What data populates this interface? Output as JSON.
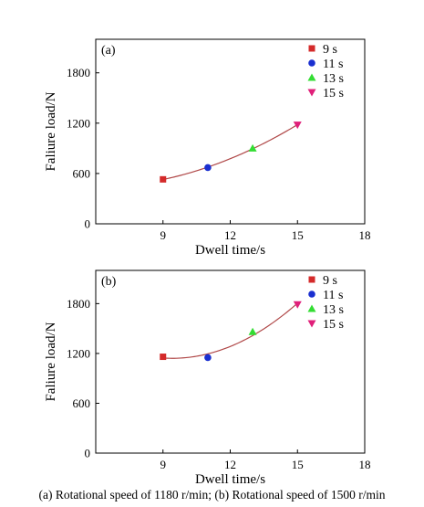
{
  "chart_data": [
    {
      "type": "scatter",
      "panel_label": "(a)",
      "xlabel": "Dwell time/s",
      "ylabel": "Faliure load/N",
      "xlim": [
        6,
        18
      ],
      "ylim": [
        0,
        2200
      ],
      "xticks": [
        9,
        12,
        15,
        18
      ],
      "yticks": [
        0,
        600,
        1200,
        1800
      ],
      "legend_position": "top-right",
      "series": [
        {
          "name": "9 s",
          "marker": "square",
          "color": "#d42a2a",
          "x": [
            9
          ],
          "y": [
            530
          ]
        },
        {
          "name": "11 s",
          "marker": "circle",
          "color": "#1a2fd0",
          "x": [
            11
          ],
          "y": [
            670
          ]
        },
        {
          "name": "13 s",
          "marker": "triangle-up",
          "color": "#33dd33",
          "x": [
            13
          ],
          "y": [
            900
          ]
        },
        {
          "name": "15 s",
          "marker": "triangle-down",
          "color": "#e0207a",
          "x": [
            15
          ],
          "y": [
            1180
          ]
        }
      ],
      "fit": {
        "type": "quadratic",
        "color": "#b04848",
        "x_range": [
          9,
          15
        ],
        "points": [
          [
            9,
            530
          ],
          [
            11,
            670
          ],
          [
            13,
            900
          ],
          [
            15,
            1180
          ]
        ]
      }
    },
    {
      "type": "scatter",
      "panel_label": "(b)",
      "xlabel": "Dwell time/s",
      "ylabel": "Faliure load/N",
      "xlim": [
        6,
        18
      ],
      "ylim": [
        0,
        2200
      ],
      "xticks": [
        9,
        12,
        15,
        18
      ],
      "yticks": [
        0,
        600,
        1200,
        1800
      ],
      "legend_position": "top-right",
      "series": [
        {
          "name": "9 s",
          "marker": "square",
          "color": "#d42a2a",
          "x": [
            9
          ],
          "y": [
            1160
          ]
        },
        {
          "name": "11 s",
          "marker": "circle",
          "color": "#1a2fd0",
          "x": [
            11
          ],
          "y": [
            1150
          ]
        },
        {
          "name": "13 s",
          "marker": "triangle-up",
          "color": "#33dd33",
          "x": [
            13
          ],
          "y": [
            1460
          ]
        },
        {
          "name": "15 s",
          "marker": "triangle-down",
          "color": "#e0207a",
          "x": [
            15
          ],
          "y": [
            1790
          ]
        }
      ],
      "fit": {
        "type": "quadratic",
        "color": "#b04848",
        "x_range": [
          9,
          15
        ],
        "points": [
          [
            9,
            1160
          ],
          [
            11,
            1150
          ],
          [
            13,
            1460
          ],
          [
            15,
            1790
          ]
        ]
      }
    }
  ],
  "caption": "(a) Rotational speed  of 1180 r/min; (b) Rotational speed of 1500 r/min"
}
